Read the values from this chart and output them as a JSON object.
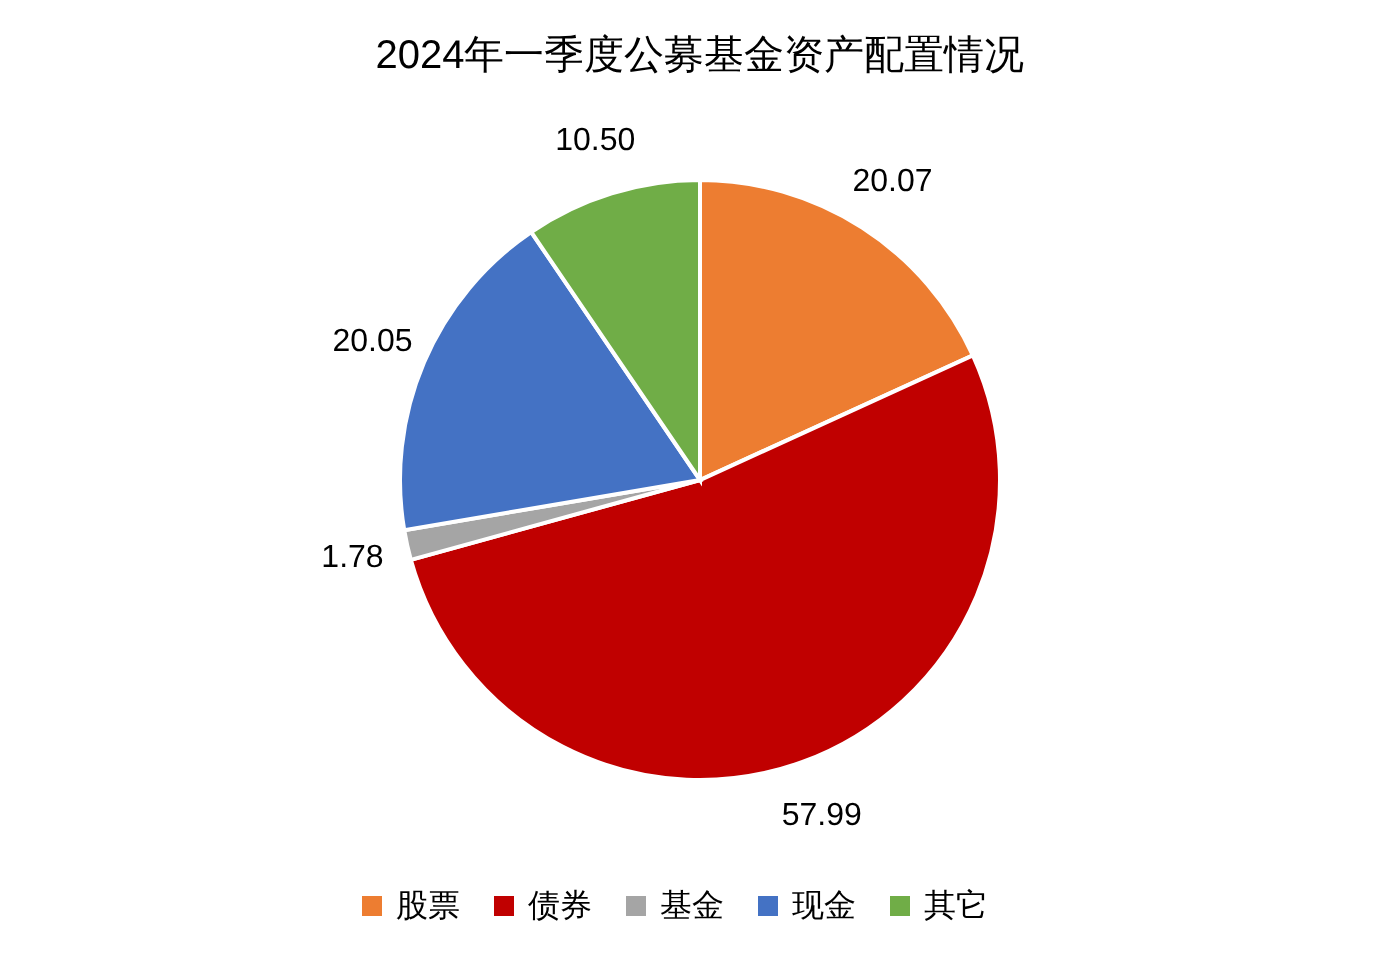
{
  "chart_data": {
    "type": "pie",
    "title": "2024年一季度公募基金资产配置情况",
    "categories": [
      "股票",
      "债券",
      "基金",
      "现金",
      "其它"
    ],
    "values": [
      20.07,
      57.99,
      1.78,
      20.05,
      10.5
    ],
    "value_labels": [
      "20.07",
      "57.99",
      "1.78",
      "20.05",
      "10.50"
    ],
    "colors": [
      "#ed7d31",
      "#c00000",
      "#a5a5a5",
      "#4472c4",
      "#70ad47"
    ],
    "legend": "bottom"
  }
}
